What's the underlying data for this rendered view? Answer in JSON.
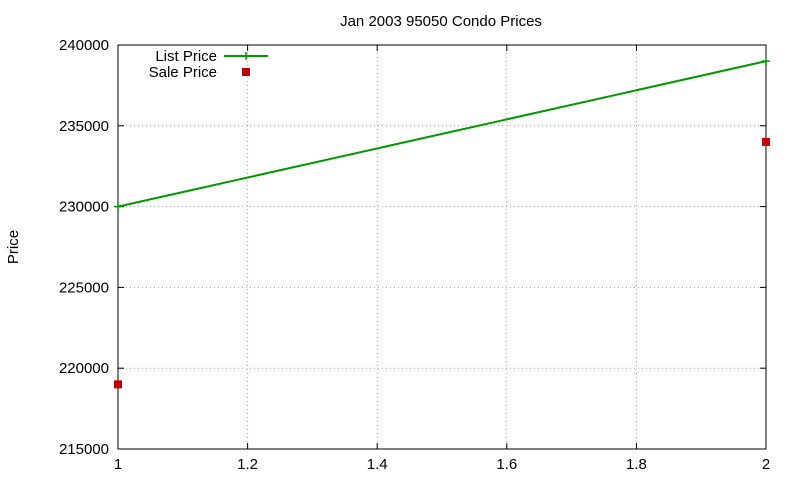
{
  "chart_data": {
    "type": "line",
    "title": "Jan 2003 95050 Condo Prices",
    "xlabel": "",
    "ylabel": "Price",
    "xlim": [
      1,
      2
    ],
    "ylim": [
      215000,
      240000
    ],
    "x_ticks": [
      "1",
      "1.2",
      "1.4",
      "1.6",
      "1.8",
      "2"
    ],
    "y_ticks": [
      "215000",
      "220000",
      "225000",
      "230000",
      "235000",
      "240000"
    ],
    "grid": true,
    "legend_position": "top-left",
    "series": [
      {
        "name": "List Price",
        "style": "linespoints",
        "color": "#009900",
        "points": [
          [
            1,
            230000
          ],
          [
            2,
            239000
          ]
        ]
      },
      {
        "name": "Sale Price",
        "style": "points",
        "color": "#c00000",
        "points": [
          [
            1,
            219000
          ],
          [
            2,
            234000
          ]
        ]
      }
    ]
  }
}
